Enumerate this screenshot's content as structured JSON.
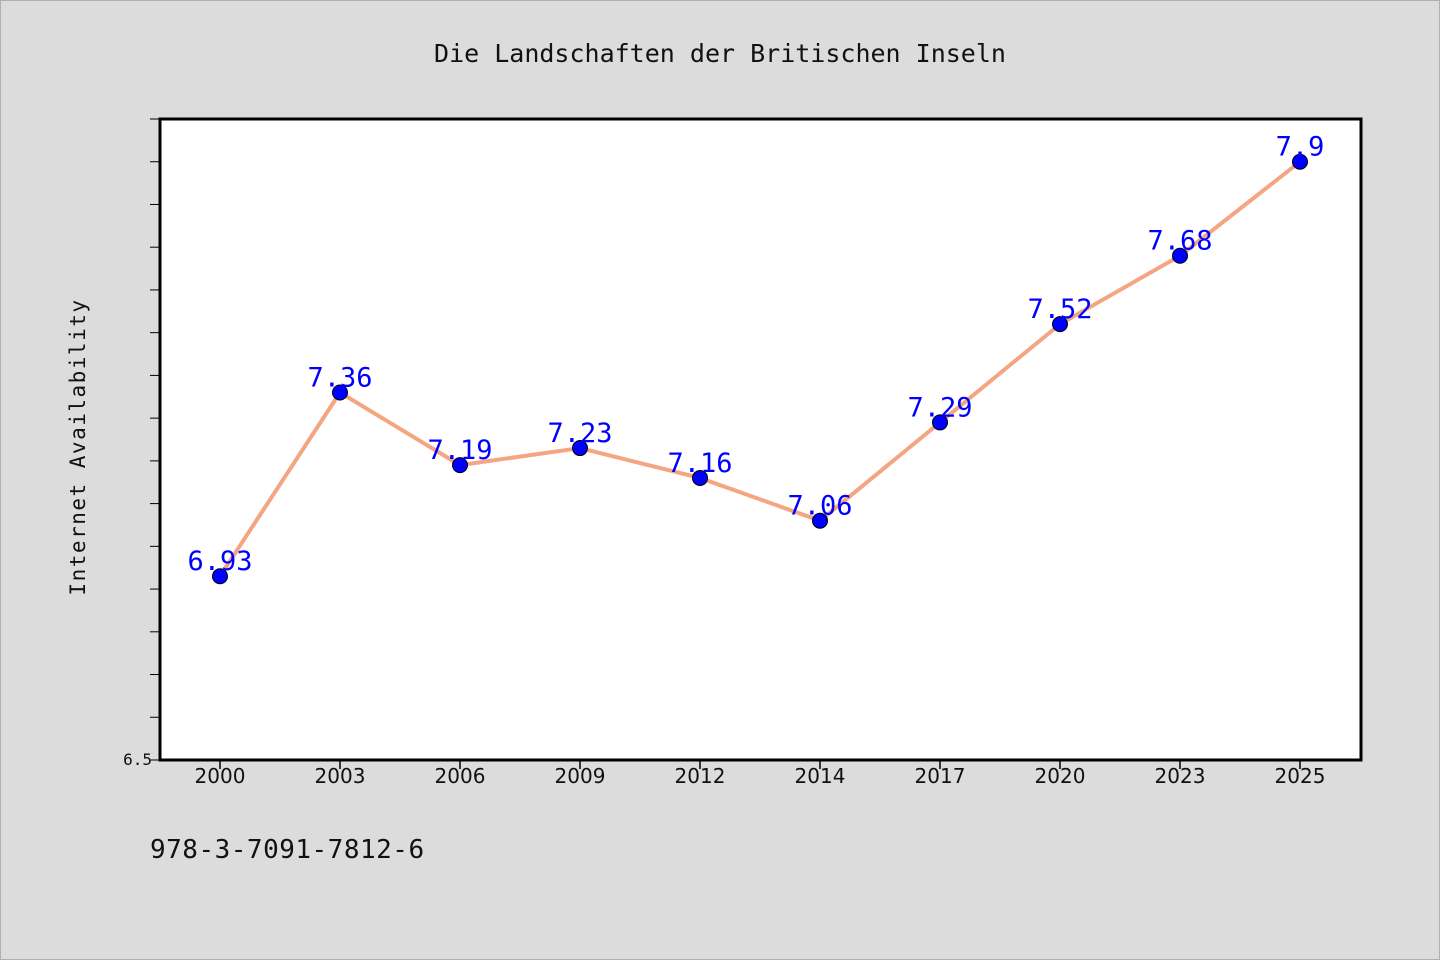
{
  "chart_data": {
    "type": "line",
    "title": "Die Landschaften der Britischen Inseln",
    "xlabel": "",
    "ylabel": "Internet Availability",
    "categories": [
      "2000",
      "2003",
      "2006",
      "2009",
      "2012",
      "2014",
      "2017",
      "2020",
      "2023",
      "2025"
    ],
    "series": [
      {
        "values": [
          6.93,
          7.36,
          7.19,
          7.23,
          7.16,
          7.06,
          7.29,
          7.52,
          7.68,
          7.9
        ],
        "labels": [
          "6.93",
          "7.36",
          "7.19",
          "7.23",
          "7.16",
          "7.06",
          "7.29",
          "7.52",
          "7.68",
          "7.9"
        ],
        "line_color": "#f4a582",
        "marker_color": "#0000ff",
        "label_color": "#0000ff"
      }
    ],
    "ylim": [
      6.5,
      8.0
    ],
    "y_tick_labels": [
      "6.5"
    ],
    "grid": false,
    "legend": "none"
  },
  "footer": {
    "caption": "978-3-7091-7812-6"
  }
}
